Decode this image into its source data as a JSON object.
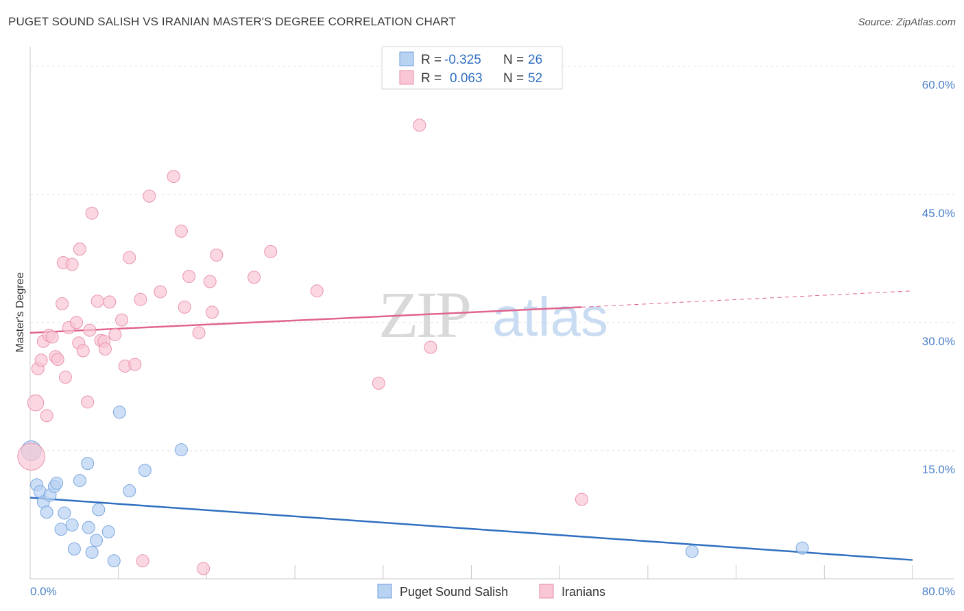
{
  "title": "PUGET SOUND SALISH VS IRANIAN MASTER'S DEGREE CORRELATION CHART",
  "source": "Source: ZipAtlas.com",
  "watermark": {
    "zip": "ZIP",
    "atlas": "atlas"
  },
  "legend_stats": [
    {
      "r_label": "R =",
      "r_value": "-0.325",
      "n_label": "N =",
      "n_value": "26",
      "color": "#a9c8f0"
    },
    {
      "r_label": "R =",
      "r_value": "0.063",
      "n_label": "N =",
      "n_value": "52",
      "color": "#f5b6c8"
    }
  ],
  "chart_data": {
    "type": "scatter",
    "xlabel": "",
    "ylabel": "Master's Degree",
    "x_tick_labels": [
      "0.0%",
      "80.0%"
    ],
    "y_tick_labels": [
      "15.0%",
      "30.0%",
      "45.0%",
      "60.0%"
    ],
    "y_ticks": [
      15,
      30,
      45,
      60
    ],
    "xlim": [
      0,
      80
    ],
    "ylim": [
      0,
      61.5
    ],
    "grid": true,
    "legend_position": "bottom",
    "series": [
      {
        "name": "Puget Sound Salish",
        "color": "#6f9fdc",
        "fill": "#b8d2f2",
        "points": [
          [
            0.1,
            15.0
          ],
          [
            0.6,
            11.0
          ],
          [
            0.9,
            10.2
          ],
          [
            1.2,
            9.0
          ],
          [
            1.5,
            7.8
          ],
          [
            1.8,
            9.8
          ],
          [
            2.2,
            10.8
          ],
          [
            2.4,
            11.2
          ],
          [
            2.8,
            5.8
          ],
          [
            3.1,
            7.7
          ],
          [
            3.8,
            6.3
          ],
          [
            4.0,
            3.5
          ],
          [
            4.5,
            11.5
          ],
          [
            5.2,
            13.5
          ],
          [
            5.3,
            6.0
          ],
          [
            5.6,
            3.1
          ],
          [
            6.0,
            4.5
          ],
          [
            6.2,
            8.1
          ],
          [
            7.1,
            5.5
          ],
          [
            7.6,
            2.1
          ],
          [
            8.1,
            19.5
          ],
          [
            9.0,
            10.3
          ],
          [
            10.4,
            12.7
          ],
          [
            13.7,
            15.1
          ],
          [
            60.0,
            3.2
          ],
          [
            70.0,
            3.6
          ]
        ],
        "sizes": [
          1.6,
          1,
          1,
          1,
          1,
          1,
          1,
          1,
          1,
          1,
          1,
          1,
          1,
          1,
          1,
          1,
          1,
          1,
          1,
          1,
          1,
          1,
          1,
          1,
          1,
          1
        ],
        "trend": {
          "x": [
            0,
            80
          ],
          "y": [
            9.5,
            2.2
          ]
        }
      },
      {
        "name": "Iranians",
        "color": "#e88ba6",
        "fill": "#f8c6d4",
        "points": [
          [
            0.1,
            14.3
          ],
          [
            0.5,
            20.6
          ],
          [
            0.7,
            24.6
          ],
          [
            1.0,
            25.6
          ],
          [
            1.2,
            27.8
          ],
          [
            1.5,
            19.1
          ],
          [
            1.7,
            28.5
          ],
          [
            2.0,
            28.3
          ],
          [
            2.3,
            26.0
          ],
          [
            2.5,
            25.7
          ],
          [
            2.9,
            32.2
          ],
          [
            3.0,
            37.0
          ],
          [
            3.2,
            23.6
          ],
          [
            3.5,
            29.4
          ],
          [
            3.8,
            36.8
          ],
          [
            4.2,
            30.0
          ],
          [
            4.4,
            27.6
          ],
          [
            4.5,
            38.6
          ],
          [
            4.8,
            26.7
          ],
          [
            5.2,
            20.7
          ],
          [
            5.4,
            29.1
          ],
          [
            5.6,
            42.8
          ],
          [
            6.1,
            32.5
          ],
          [
            6.4,
            27.9
          ],
          [
            6.7,
            27.8
          ],
          [
            6.8,
            26.9
          ],
          [
            7.2,
            32.4
          ],
          [
            7.7,
            28.6
          ],
          [
            8.3,
            30.3
          ],
          [
            8.6,
            24.9
          ],
          [
            9.0,
            37.6
          ],
          [
            9.5,
            25.1
          ],
          [
            10.0,
            32.7
          ],
          [
            10.2,
            2.1
          ],
          [
            10.8,
            44.8
          ],
          [
            11.8,
            33.6
          ],
          [
            13.0,
            47.1
          ],
          [
            13.7,
            40.7
          ],
          [
            14.0,
            31.8
          ],
          [
            14.4,
            35.4
          ],
          [
            15.3,
            28.8
          ],
          [
            15.7,
            1.2
          ],
          [
            16.3,
            34.8
          ],
          [
            16.5,
            31.2
          ],
          [
            16.9,
            37.9
          ],
          [
            20.3,
            35.3
          ],
          [
            21.8,
            38.3
          ],
          [
            26.0,
            33.7
          ],
          [
            31.6,
            22.9
          ],
          [
            35.3,
            53.1
          ],
          [
            36.3,
            27.1
          ],
          [
            50.0,
            9.3
          ]
        ],
        "sizes": [
          2.2,
          1.3,
          1,
          1,
          1,
          1,
          1,
          1,
          1,
          1,
          1,
          1,
          1,
          1,
          1,
          1,
          1,
          1,
          1,
          1,
          1,
          1,
          1,
          1,
          1,
          1,
          1,
          1,
          1,
          1,
          1,
          1,
          1,
          1,
          1,
          1,
          1,
          1,
          1,
          1,
          1,
          1,
          1,
          1,
          1,
          1,
          1,
          1,
          1,
          1,
          1,
          1
        ],
        "trend": {
          "x": [
            0,
            50
          ],
          "y": [
            28.8,
            31.8
          ]
        },
        "trend_dashed": {
          "x": [
            50,
            80
          ],
          "y": [
            31.8,
            33.7
          ]
        }
      }
    ]
  }
}
